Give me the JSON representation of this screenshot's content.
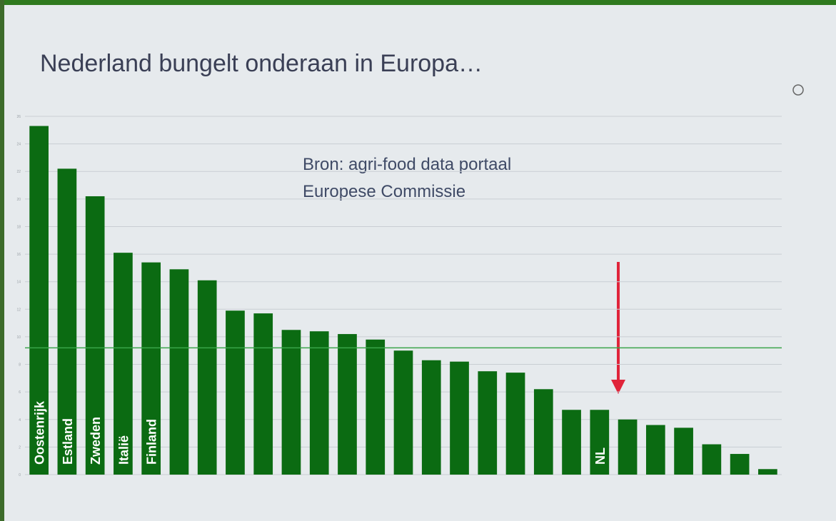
{
  "chart_data": {
    "type": "bar",
    "title": "Nederland bungelt onderaan in Europa…",
    "annotations": [
      "Bron: agri-food data portaal",
      "Europese Commissie"
    ],
    "categories": [
      "Oostenrijk",
      "Estland",
      "Zweden",
      "Italië",
      "Finland",
      null,
      null,
      null,
      null,
      null,
      null,
      null,
      null,
      null,
      null,
      null,
      null,
      null,
      null,
      null,
      "NL",
      null,
      null,
      null,
      null,
      null,
      null
    ],
    "values": [
      25.3,
      22.2,
      20.2,
      16.1,
      15.4,
      14.9,
      14.1,
      11.9,
      11.7,
      10.5,
      10.4,
      10.2,
      9.8,
      9.0,
      8.3,
      8.2,
      7.5,
      7.4,
      6.2,
      4.7,
      4.7,
      4.0,
      3.6,
      3.4,
      2.2,
      1.5,
      0.4
    ],
    "color": "#0b6b12",
    "reference_line": {
      "value": 9.2,
      "color": "#3aa54a"
    },
    "ylim": [
      0,
      26
    ],
    "yticks": [
      0,
      2,
      4,
      6,
      8,
      10,
      12,
      14,
      16,
      18,
      20,
      22,
      24,
      26
    ],
    "grid": true
  }
}
